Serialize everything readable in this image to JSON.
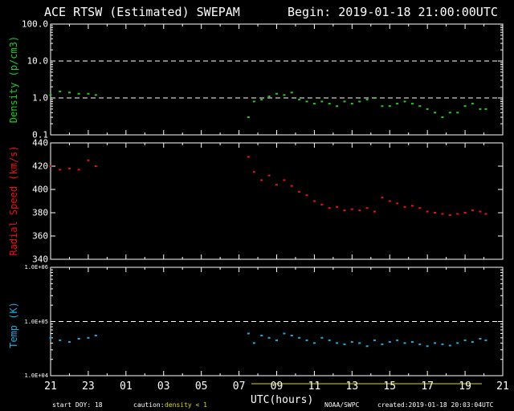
{
  "header": {
    "title": "ACE RTSW (Estimated) SWEPAM",
    "begin": "Begin: 2019-01-18 21:00:00UTC"
  },
  "footer": {
    "start_doy": "start DOY:  18",
    "caution_prefix": "caution:",
    "caution_value": "density < 1",
    "source": "NOAA/SWPC",
    "created": "created:2019-01-18 20:03:04UTC",
    "xlabel": "UTC(hours)"
  },
  "colors": {
    "density": "#22cc22",
    "speed": "#ee1111",
    "temp": "#22aadd",
    "caution": "#dddd00",
    "axes": "#ffffff"
  },
  "chart_data": [
    {
      "type": "scatter",
      "panel": "density",
      "ylabel": "Density (p/cm3)",
      "yscale": "log",
      "ylim": [
        0.1,
        100
      ],
      "yticks": [
        "100.0",
        "10.0",
        "1.0",
        "0.1"
      ],
      "reference_lines": [
        10,
        1
      ],
      "x_ticks": [
        "21",
        "23",
        "01",
        "03",
        "05",
        "07",
        "09",
        "11",
        "13",
        "15",
        "17",
        "19",
        "21"
      ],
      "series": [
        {
          "x": [
            21.0,
            21.5,
            22.0,
            22.5,
            23.0,
            23.4,
            7.5,
            7.8,
            8.2,
            8.6,
            9.0,
            9.4,
            9.8,
            10.2,
            10.6,
            11.0,
            11.4,
            11.8,
            12.2,
            12.6,
            13.0,
            13.4,
            13.8,
            14.2,
            14.6,
            15.0,
            15.4,
            15.8,
            16.2,
            16.6,
            17.0,
            17.4,
            17.8,
            18.2,
            18.6,
            19.0,
            19.4,
            19.8,
            20.1
          ],
          "values": [
            1.2,
            1.5,
            1.4,
            1.3,
            1.3,
            1.2,
            0.3,
            0.8,
            0.9,
            1.1,
            1.3,
            1.2,
            1.4,
            0.9,
            0.8,
            0.7,
            0.8,
            0.7,
            0.6,
            0.8,
            0.7,
            0.8,
            0.9,
            1.0,
            0.6,
            0.6,
            0.7,
            0.8,
            0.7,
            0.6,
            0.5,
            0.4,
            0.3,
            0.4,
            0.4,
            0.6,
            0.7,
            0.5,
            0.5
          ]
        }
      ]
    },
    {
      "type": "scatter",
      "panel": "speed",
      "ylabel": "Radial Speed (km/s)",
      "ylim": [
        340,
        440
      ],
      "yticks": [
        "440",
        "420",
        "400",
        "380",
        "360",
        "340"
      ],
      "series": [
        {
          "x": [
            21.0,
            21.5,
            22.0,
            22.5,
            23.0,
            23.4,
            7.5,
            7.8,
            8.2,
            8.6,
            9.0,
            9.4,
            9.8,
            10.2,
            10.6,
            11.0,
            11.4,
            11.8,
            12.2,
            12.6,
            13.0,
            13.4,
            13.8,
            14.2,
            14.6,
            15.0,
            15.4,
            15.8,
            16.2,
            16.6,
            17.0,
            17.4,
            17.8,
            18.2,
            18.6,
            19.0,
            19.4,
            19.8,
            20.1
          ],
          "values": [
            420,
            417,
            418,
            417,
            425,
            420,
            428,
            415,
            408,
            412,
            404,
            408,
            403,
            398,
            395,
            390,
            387,
            384,
            385,
            382,
            383,
            382,
            384,
            381,
            393,
            390,
            388,
            385,
            386,
            384,
            381,
            380,
            379,
            378,
            379,
            380,
            382,
            381,
            379
          ]
        }
      ]
    },
    {
      "type": "scatter",
      "panel": "temp",
      "ylabel": "Temp (K)",
      "yscale": "log",
      "ylim": [
        10000,
        1000000
      ],
      "yticks": [
        "1.0E+06",
        "1.0E+05",
        "1.0E+04"
      ],
      "reference_lines": [
        100000
      ],
      "series": [
        {
          "x": [
            21.0,
            21.5,
            22.0,
            22.5,
            23.0,
            23.4,
            7.5,
            7.8,
            8.2,
            8.6,
            9.0,
            9.4,
            9.8,
            10.2,
            10.6,
            11.0,
            11.4,
            11.8,
            12.2,
            12.6,
            13.0,
            13.4,
            13.8,
            14.2,
            14.6,
            15.0,
            15.4,
            15.8,
            16.2,
            16.6,
            17.0,
            17.4,
            17.8,
            18.2,
            18.6,
            19.0,
            19.4,
            19.8,
            20.1
          ],
          "values": [
            50000,
            45000,
            42000,
            48000,
            50000,
            55000,
            60000,
            40000,
            55000,
            50000,
            45000,
            60000,
            55000,
            50000,
            45000,
            40000,
            50000,
            45000,
            40000,
            38000,
            42000,
            40000,
            35000,
            45000,
            38000,
            42000,
            45000,
            40000,
            42000,
            38000,
            35000,
            40000,
            38000,
            36000,
            40000,
            45000,
            42000,
            48000,
            45000
          ]
        }
      ]
    }
  ]
}
